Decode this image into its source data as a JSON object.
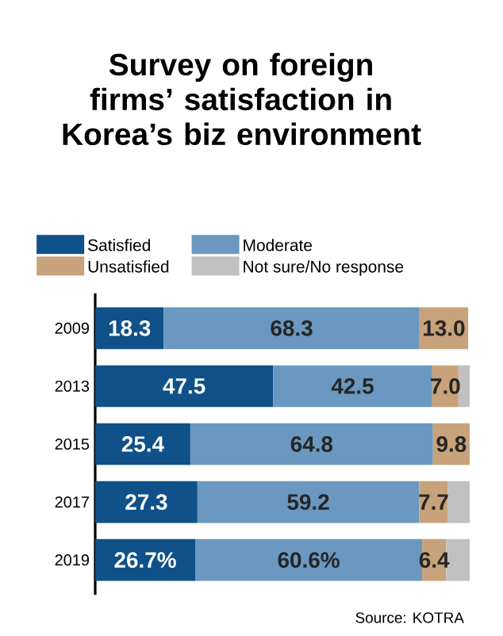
{
  "chart_data": {
    "type": "bar",
    "orientation": "horizontal",
    "stacked": true,
    "title": "Survey on foreign firms’ satisfaction in Korea’s biz environment",
    "categories": [
      "2009",
      "2013",
      "2015",
      "2017",
      "2019"
    ],
    "xlim": [
      0,
      100
    ],
    "tick_labels": "y",
    "legend": "top",
    "series": [
      {
        "name": "Satisfied",
        "color": "#0f5188",
        "values": [
          18.3,
          47.5,
          25.4,
          27.3,
          26.7
        ],
        "value_labels": [
          "18.3",
          "47.5",
          "25.4",
          "27.3",
          "26.7%"
        ]
      },
      {
        "name": "Moderate",
        "color": "#6a98c0",
        "values": [
          68.3,
          42.5,
          64.8,
          59.2,
          60.6
        ],
        "value_labels": [
          "68.3",
          "42.5",
          "64.8",
          "59.2",
          "60.6%"
        ]
      },
      {
        "name": "Unsatisfied",
        "color": "#c8a27a",
        "values": [
          13.0,
          7.0,
          9.8,
          7.7,
          6.4
        ],
        "value_labels": [
          "13.0",
          "7.0",
          "9.8",
          "7.7",
          "6.4"
        ]
      },
      {
        "name": "Not sure/No response",
        "color": "#c0c0c0",
        "values": [
          null,
          3.0,
          null,
          5.8,
          6.3
        ],
        "value_labels": [
          null,
          null,
          null,
          null,
          null
        ]
      }
    ],
    "annotations": [
      "Source: KOTRA"
    ]
  }
}
